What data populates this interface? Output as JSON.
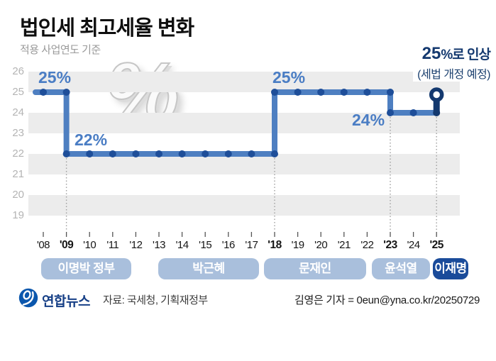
{
  "header": {
    "title": "법인세 최고세율 변화",
    "subtitle": "적용 사업연도 기준"
  },
  "watermark": "%",
  "chart_data": {
    "type": "line",
    "step": true,
    "x_labels": [
      "'08",
      "'09",
      "'10",
      "'11",
      "'12",
      "'13",
      "'14",
      "'15",
      "'16",
      "'17",
      "'18",
      "'19",
      "'20",
      "'21",
      "'22",
      "'23",
      "'24",
      "'25"
    ],
    "bold_x_label_indices": [
      1,
      10,
      15,
      17
    ],
    "values": [
      25,
      22,
      22,
      22,
      22,
      22,
      22,
      22,
      22,
      22,
      25,
      25,
      25,
      25,
      25,
      24,
      24,
      24
    ],
    "projected_final_value": 25,
    "y_ticks": [
      26,
      25,
      24,
      23,
      22,
      21,
      20,
      19
    ],
    "ylim": [
      19,
      26
    ],
    "grid": "striped",
    "value_labels": [
      {
        "text": "25%"
      },
      {
        "text": "22%"
      },
      {
        "text": "25%"
      },
      {
        "text": "24%"
      }
    ],
    "annotation": {
      "value": "25",
      "suffix": "%로 인상",
      "line2": "(세법 개정 예정)"
    },
    "colors": {
      "line": "#4e7fc1",
      "dot": "#1e4e99",
      "projected": "#14396f",
      "value_label": "#4a7dc4",
      "stripe": "#ececec",
      "y_axis_text": "#b4b4b4",
      "dotted_guide": "#9e9e9e"
    }
  },
  "governments": [
    {
      "label": "이명박 정부",
      "highlight": false
    },
    {
      "label": "박근혜",
      "highlight": false
    },
    {
      "label": "문재인",
      "highlight": false
    },
    {
      "label": "윤석열",
      "highlight": false
    },
    {
      "label": "이재명",
      "highlight": true
    }
  ],
  "footer": {
    "logo_text": "연합뉴스",
    "source": "자료: 국세청, 기획재정부",
    "credit": "김영은 기자 = 0eun@yna.co.kr/20250729"
  }
}
